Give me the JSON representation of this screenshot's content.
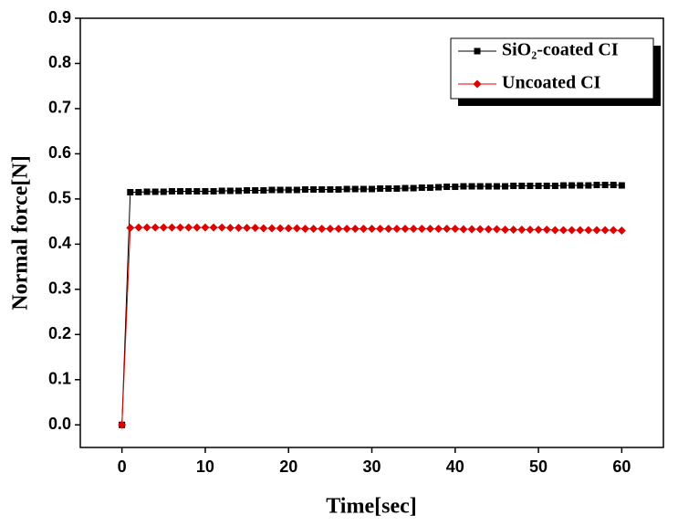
{
  "chart_data": {
    "type": "line",
    "x_label": "Time[sec]",
    "y_label": "Normal force[N]",
    "xlim": [
      -5,
      65
    ],
    "ylim": [
      -0.05,
      0.9
    ],
    "xticks": [
      0,
      10,
      20,
      30,
      40,
      50,
      60
    ],
    "yticks": [
      {
        "value": 0,
        "label": "0.0"
      },
      0.1,
      0.2,
      0.3,
      0.4,
      0.5,
      0.6,
      0.7,
      0.8,
      0.9
    ],
    "legend": "upper right",
    "x": [
      0,
      1,
      2,
      3,
      4,
      5,
      6,
      7,
      8,
      9,
      10,
      11,
      12,
      13,
      14,
      15,
      16,
      17,
      18,
      19,
      20,
      21,
      22,
      23,
      24,
      25,
      26,
      27,
      28,
      29,
      30,
      31,
      32,
      33,
      34,
      35,
      36,
      37,
      38,
      39,
      40,
      41,
      42,
      43,
      44,
      45,
      46,
      47,
      48,
      49,
      50,
      51,
      52,
      53,
      54,
      55,
      56,
      57,
      58,
      59,
      60
    ],
    "series": [
      {
        "name": "SiO₂-coated CI",
        "color": "#000000",
        "marker": "square",
        "values": [
          0,
          0.515,
          0.515,
          0.516,
          0.516,
          0.516,
          0.517,
          0.517,
          0.517,
          0.517,
          0.517,
          0.517,
          0.518,
          0.518,
          0.518,
          0.519,
          0.519,
          0.519,
          0.52,
          0.52,
          0.52,
          0.52,
          0.521,
          0.521,
          0.521,
          0.521,
          0.521,
          0.522,
          0.522,
          0.522,
          0.522,
          0.523,
          0.523,
          0.523,
          0.524,
          0.524,
          0.525,
          0.525,
          0.526,
          0.527,
          0.527,
          0.528,
          0.528,
          0.528,
          0.528,
          0.528,
          0.528,
          0.529,
          0.529,
          0.529,
          0.529,
          0.529,
          0.529,
          0.53,
          0.53,
          0.53,
          0.53,
          0.531,
          0.531,
          0.531,
          0.53
        ]
      },
      {
        "name": "Uncoated CI",
        "color": "#e00000",
        "marker": "diamond",
        "values": [
          0,
          0.436,
          0.437,
          0.437,
          0.437,
          0.437,
          0.437,
          0.437,
          0.437,
          0.437,
          0.437,
          0.437,
          0.437,
          0.436,
          0.436,
          0.436,
          0.436,
          0.435,
          0.435,
          0.435,
          0.435,
          0.435,
          0.434,
          0.434,
          0.434,
          0.434,
          0.434,
          0.434,
          0.434,
          0.434,
          0.434,
          0.434,
          0.434,
          0.434,
          0.434,
          0.434,
          0.434,
          0.434,
          0.434,
          0.434,
          0.434,
          0.433,
          0.433,
          0.433,
          0.433,
          0.433,
          0.432,
          0.432,
          0.432,
          0.432,
          0.432,
          0.432,
          0.431,
          0.431,
          0.431,
          0.431,
          0.431,
          0.431,
          0.431,
          0.431,
          0.43
        ]
      }
    ]
  }
}
